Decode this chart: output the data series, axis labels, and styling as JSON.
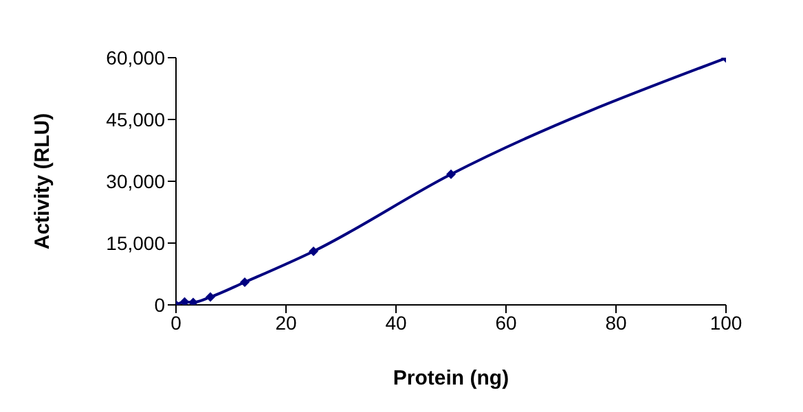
{
  "chart_data": {
    "type": "line",
    "xlabel": "Protein (ng)",
    "ylabel": "Activity (RLU)",
    "x": [
      0,
      1.56,
      3.125,
      6.25,
      12.5,
      25,
      50,
      100
    ],
    "series": [
      {
        "color": "#000080",
        "values": [
          0,
          700,
          600,
          1900,
          5500,
          13000,
          31700,
          59900
        ]
      }
    ],
    "xlim": [
      0,
      100
    ],
    "xticks": [
      0,
      20,
      40,
      60,
      80,
      100
    ],
    "ylim": [
      0,
      60000
    ],
    "yticks": [
      {
        "value": 0,
        "label": "0"
      },
      {
        "value": 15000,
        "label": "15,000"
      },
      {
        "value": 30000,
        "label": "30,000"
      },
      {
        "value": 45000,
        "label": "45,000"
      },
      {
        "value": 60000,
        "label": "60,000"
      }
    ],
    "grid": false,
    "legend": false,
    "marker": "diamond",
    "line_style": "solid"
  }
}
